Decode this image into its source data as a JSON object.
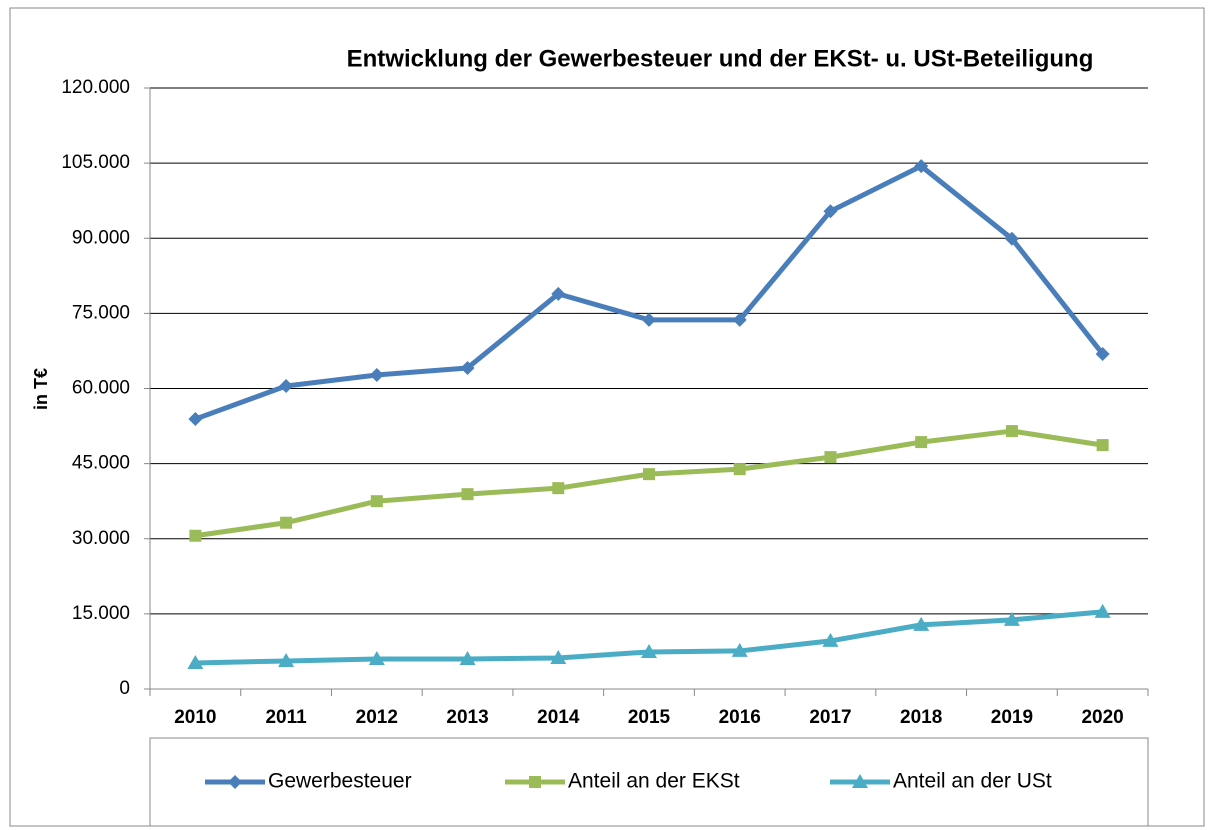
{
  "chart_data": {
    "type": "line",
    "title": "Entwicklung der Gewerbesteuer und der EKSt- u. USt-Beteiligung",
    "ylabel": "in T€",
    "categories": [
      "2010",
      "2011",
      "2012",
      "2013",
      "2014",
      "2015",
      "2016",
      "2017",
      "2018",
      "2019",
      "2020"
    ],
    "series": [
      {
        "name": "Gewerbesteuer",
        "color": "#4a7ebb",
        "marker": "diamond",
        "values": [
          53900,
          60500,
          62700,
          64100,
          78900,
          73700,
          73700,
          95400,
          104400,
          89900,
          66900
        ]
      },
      {
        "name": "Anteil an der EKSt",
        "color": "#9bbb59",
        "marker": "square",
        "values": [
          30600,
          33200,
          37500,
          38900,
          40100,
          42900,
          43900,
          46300,
          49300,
          51500,
          48700
        ]
      },
      {
        "name": "Anteil an der USt",
        "color": "#4bacc6",
        "marker": "triangle",
        "values": [
          5200,
          5600,
          6000,
          6000,
          6200,
          7400,
          7600,
          9600,
          12800,
          13800,
          15400
        ]
      }
    ],
    "ylim": [
      0,
      120000
    ],
    "yticks": [
      0,
      {
        "value": 15000,
        "label": "15.000"
      },
      {
        "value": 30000,
        "label": "30.000"
      },
      {
        "value": 45000,
        "label": "45.000"
      },
      {
        "value": 60000,
        "label": "60.000"
      },
      {
        "value": 75000,
        "label": "75.000"
      },
      {
        "value": 90000,
        "label": "90.000"
      },
      {
        "value": 105000,
        "label": "105.000"
      },
      {
        "value": 120000,
        "label": "120.000"
      }
    ],
    "grid": true,
    "legend": "bottom"
  }
}
